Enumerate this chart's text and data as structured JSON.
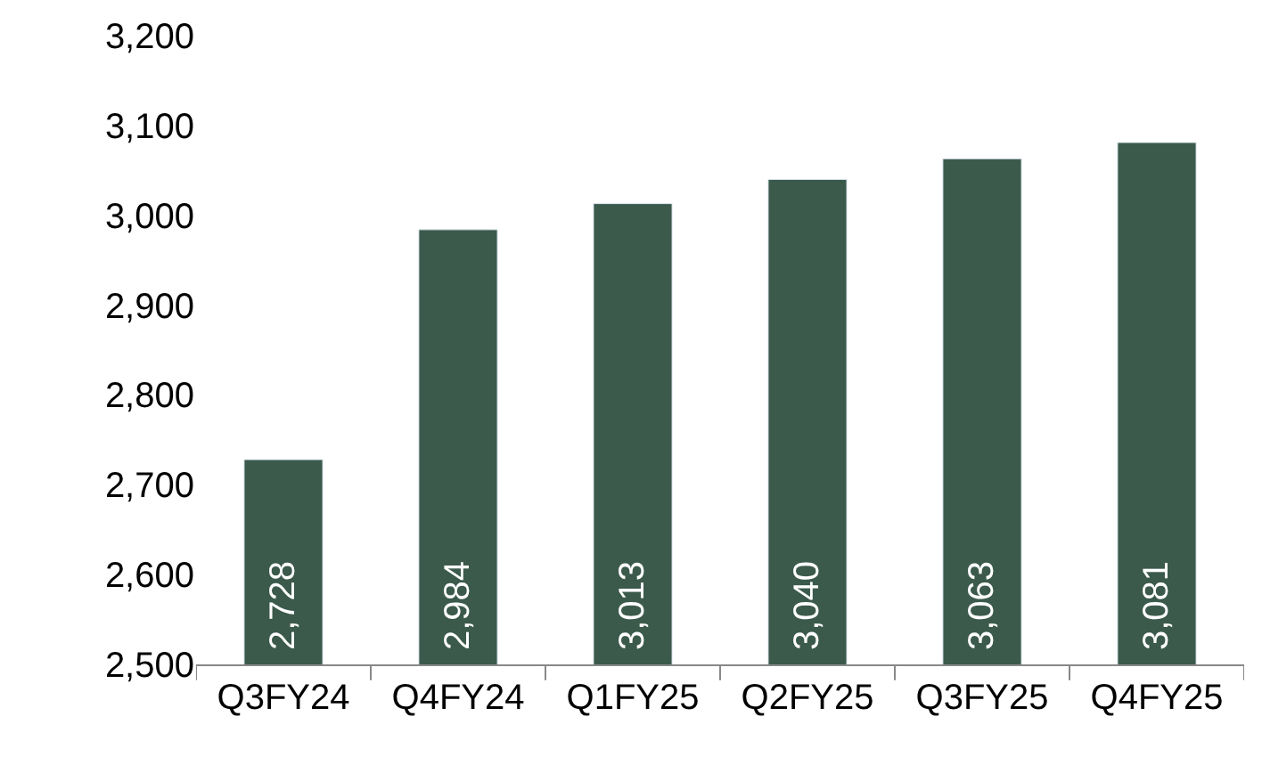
{
  "chart_data": {
    "type": "bar",
    "categories": [
      "Q3FY24",
      "Q4FY24",
      "Q1FY25",
      "Q2FY25",
      "Q3FY25",
      "Q4FY25"
    ],
    "values": [
      2728,
      2984,
      3013,
      3040,
      3063,
      3081
    ],
    "color": "#3b5a4c",
    "ylim": [
      2500,
      3200
    ],
    "yticks": [
      {
        "value": 2500,
        "label": "2,500"
      },
      {
        "value": 2600,
        "label": "2,600"
      },
      {
        "value": 2700,
        "label": "2,700"
      },
      {
        "value": 2800,
        "label": "2,800"
      },
      {
        "value": 2900,
        "label": "2,900"
      },
      {
        "value": 3000,
        "label": "3,000"
      },
      {
        "value": 3100,
        "label": "3,100"
      },
      {
        "value": 3200,
        "label": "3,200"
      }
    ],
    "value_labels": [
      "2,728",
      "2,984",
      "3,013",
      "3,040",
      "3,063",
      "3,081"
    ]
  }
}
